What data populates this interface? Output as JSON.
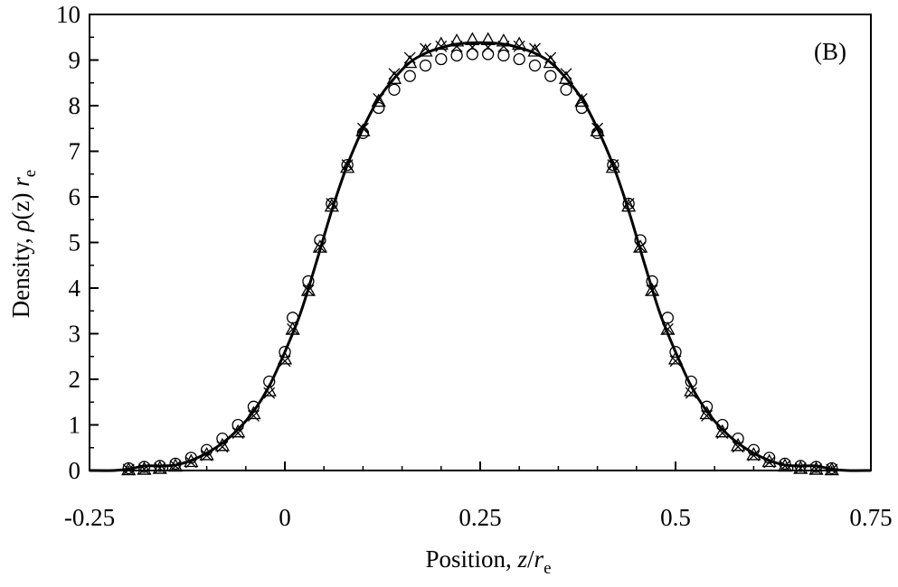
{
  "chart_data": {
    "type": "scatter",
    "panel_label": "(B)",
    "xlabel": {
      "prefix": "Position, ",
      "var": "z",
      "slash": "/",
      "r": "r",
      "sub": "e"
    },
    "ylabel": {
      "prefix": "Density, ",
      "rho": "ρ",
      "arg": "(z)",
      "r": "r",
      "sub": "e"
    },
    "xlim": [
      -0.25,
      0.75
    ],
    "ylim": [
      0,
      10
    ],
    "x_ticks": [
      -0.25,
      0,
      0.25,
      0.5,
      0.75
    ],
    "x_tick_labels": [
      "-0.25",
      "0",
      "0.25",
      "0.5",
      "0.75"
    ],
    "y_ticks": [
      0,
      1,
      2,
      3,
      4,
      5,
      6,
      7,
      8,
      9,
      10
    ],
    "y_tick_labels": [
      "0",
      "1",
      "2",
      "3",
      "4",
      "5",
      "6",
      "7",
      "8",
      "9",
      "10"
    ],
    "grid": false,
    "legend": "none",
    "series": [
      {
        "marker": "line",
        "x": [
          -0.25,
          -0.22,
          -0.2,
          -0.18,
          -0.16,
          -0.14,
          -0.12,
          -0.1,
          -0.08,
          -0.06,
          -0.04,
          -0.02,
          0.0,
          0.02,
          0.04,
          0.06,
          0.08,
          0.1,
          0.12,
          0.14,
          0.16,
          0.18,
          0.2,
          0.22,
          0.25,
          0.28,
          0.3,
          0.32,
          0.34,
          0.36,
          0.38,
          0.4,
          0.42,
          0.44,
          0.46,
          0.48,
          0.5,
          0.52,
          0.54,
          0.56,
          0.58,
          0.6,
          0.62,
          0.64,
          0.66,
          0.68,
          0.7,
          0.72,
          0.75
        ],
        "y": [
          0.0,
          0.0,
          0.03,
          0.1,
          0.1,
          0.12,
          0.22,
          0.38,
          0.6,
          0.9,
          1.3,
          1.85,
          2.6,
          3.45,
          4.55,
          5.7,
          6.7,
          7.5,
          8.15,
          8.6,
          8.95,
          9.15,
          9.27,
          9.35,
          9.38,
          9.35,
          9.27,
          9.15,
          8.95,
          8.6,
          8.15,
          7.5,
          6.7,
          5.7,
          4.55,
          3.45,
          2.6,
          1.85,
          1.3,
          0.9,
          0.6,
          0.38,
          0.22,
          0.12,
          0.1,
          0.1,
          0.03,
          0.0,
          0.0
        ]
      },
      {
        "marker": "circle",
        "x": [
          -0.2,
          -0.18,
          -0.16,
          -0.14,
          -0.12,
          -0.1,
          -0.08,
          -0.06,
          -0.04,
          -0.02,
          0.0,
          0.01,
          0.03,
          0.045,
          0.06,
          0.08,
          0.1,
          0.12,
          0.14,
          0.16,
          0.18,
          0.2,
          0.22,
          0.24,
          0.26,
          0.28,
          0.3,
          0.32,
          0.34,
          0.36,
          0.38,
          0.4,
          0.42,
          0.44,
          0.455,
          0.47,
          0.49,
          0.5,
          0.52,
          0.54,
          0.56,
          0.58,
          0.6,
          0.62,
          0.64,
          0.66,
          0.68,
          0.7
        ],
        "y": [
          0.05,
          0.08,
          0.1,
          0.15,
          0.28,
          0.45,
          0.7,
          1.0,
          1.4,
          1.95,
          2.6,
          3.35,
          4.15,
          5.05,
          5.85,
          6.7,
          7.4,
          7.95,
          8.35,
          8.65,
          8.88,
          9.02,
          9.1,
          9.13,
          9.13,
          9.1,
          9.02,
          8.88,
          8.65,
          8.35,
          7.95,
          7.4,
          6.7,
          5.85,
          5.05,
          4.15,
          3.35,
          2.6,
          1.95,
          1.4,
          1.0,
          0.7,
          0.45,
          0.28,
          0.15,
          0.1,
          0.08,
          0.05
        ]
      },
      {
        "marker": "triangle",
        "x": [
          -0.2,
          -0.18,
          -0.16,
          -0.14,
          -0.12,
          -0.1,
          -0.08,
          -0.06,
          -0.04,
          -0.02,
          0.0,
          0.01,
          0.03,
          0.045,
          0.06,
          0.08,
          0.1,
          0.12,
          0.14,
          0.16,
          0.18,
          0.2,
          0.22,
          0.24,
          0.26,
          0.28,
          0.3,
          0.32,
          0.34,
          0.36,
          0.38,
          0.4,
          0.42,
          0.44,
          0.455,
          0.47,
          0.49,
          0.5,
          0.52,
          0.54,
          0.56,
          0.58,
          0.6,
          0.62,
          0.64,
          0.66,
          0.68,
          0.7
        ],
        "y": [
          0.02,
          0.03,
          0.05,
          0.1,
          0.2,
          0.35,
          0.55,
          0.85,
          1.25,
          1.75,
          2.45,
          3.1,
          3.95,
          4.9,
          5.8,
          6.65,
          7.45,
          8.1,
          8.6,
          8.95,
          9.2,
          9.35,
          9.42,
          9.45,
          9.45,
          9.42,
          9.35,
          9.2,
          8.95,
          8.6,
          8.1,
          7.45,
          6.65,
          5.8,
          4.9,
          3.95,
          3.1,
          2.45,
          1.75,
          1.25,
          0.85,
          0.55,
          0.35,
          0.2,
          0.1,
          0.05,
          0.03,
          0.02
        ]
      },
      {
        "marker": "cross",
        "x": [
          -0.2,
          -0.18,
          -0.16,
          -0.14,
          -0.12,
          -0.1,
          -0.08,
          -0.06,
          -0.04,
          -0.02,
          0.0,
          0.01,
          0.03,
          0.045,
          0.06,
          0.08,
          0.1,
          0.12,
          0.14,
          0.16,
          0.18,
          0.2,
          0.22,
          0.24,
          0.26,
          0.28,
          0.3,
          0.32,
          0.34,
          0.36,
          0.38,
          0.4,
          0.42,
          0.44,
          0.455,
          0.47,
          0.49,
          0.5,
          0.52,
          0.54,
          0.56,
          0.58,
          0.6,
          0.62,
          0.64,
          0.66,
          0.68,
          0.7
        ],
        "y": [
          0.02,
          0.03,
          0.05,
          0.1,
          0.18,
          0.33,
          0.52,
          0.82,
          1.2,
          1.7,
          2.4,
          3.1,
          3.95,
          4.9,
          5.85,
          6.7,
          7.5,
          8.15,
          8.7,
          9.05,
          9.25,
          9.3,
          9.3,
          9.28,
          9.28,
          9.3,
          9.3,
          9.25,
          9.05,
          8.7,
          8.15,
          7.5,
          6.7,
          5.85,
          4.9,
          3.95,
          3.1,
          2.4,
          1.7,
          1.2,
          0.82,
          0.52,
          0.33,
          0.18,
          0.1,
          0.05,
          0.03,
          0.02
        ]
      }
    ]
  }
}
